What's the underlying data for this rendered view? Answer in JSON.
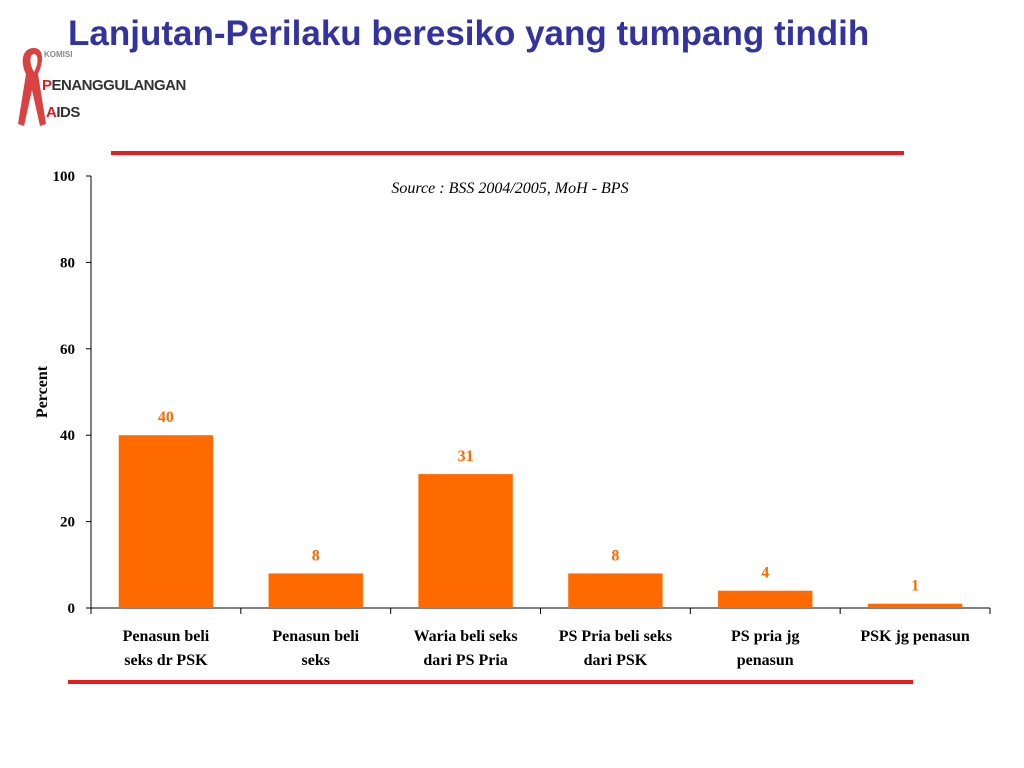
{
  "page": {
    "title": "Lanjutan-Perilaku beresiko yang tumpang tindih"
  },
  "logo": {
    "line_small": "KOMISI",
    "line1_first": "P",
    "line1_rest": "ENANGGULANGAN",
    "line2_first": "A",
    "line2_rest": "IDS",
    "icon": "red-ribbon-icon"
  },
  "colors": {
    "title": "#3333a0",
    "bar": "#ff6a00",
    "rule": "#e81c1c",
    "data_label": "#ff6a00"
  },
  "chart_data": {
    "type": "bar",
    "source_note": "Source : BSS 2004/2005, MoH - BPS",
    "ylabel": "Percent",
    "xlabel": "",
    "ylim": [
      0,
      100
    ],
    "yticks": [
      "0",
      "20",
      "40",
      "60",
      "80",
      "100"
    ],
    "grid": false,
    "categories": [
      [
        "Penasun beli",
        "seks dr PSK"
      ],
      [
        "Penasun beli",
        "seks"
      ],
      [
        "Waria beli seks",
        "dari PS Pria"
      ],
      [
        "PS Pria beli seks",
        "dari PSK"
      ],
      [
        "PS pria jg",
        "penasun"
      ],
      [
        "PSK jg penasun"
      ]
    ],
    "values": [
      40,
      8,
      31,
      8,
      4,
      1
    ],
    "data_labels": [
      "40",
      "8",
      "31",
      "8",
      "4",
      "1"
    ]
  }
}
